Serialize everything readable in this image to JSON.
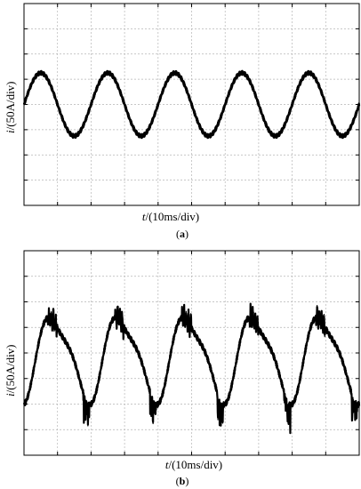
{
  "chart_data": [
    {
      "type": "line",
      "panel_label": "(a)",
      "caption_open": "(",
      "caption_letter": "a",
      "caption_close": ")",
      "ylabel_var": "i",
      "ylabel_rest": "/(50A/div)",
      "xlabel_var": "t",
      "xlabel_rest": "/(10ms/div)",
      "x_divisions": 10,
      "y_divisions": 8,
      "xlim": [
        0,
        100
      ],
      "ylim": [
        -4,
        4
      ],
      "series": [
        {
          "waveform": "sine",
          "period_ms": 20,
          "amplitude_div": 1.25,
          "offset_div": 0,
          "start_phase_deg": 0,
          "ripple_div": 0.08,
          "x": [
            0,
            5,
            10,
            15,
            20,
            25,
            30,
            35,
            40,
            45,
            50,
            55,
            60,
            65,
            70,
            75,
            80,
            85,
            90,
            95,
            100
          ],
          "y": [
            0,
            1.25,
            0,
            -1.25,
            0,
            1.25,
            0,
            -1.25,
            0,
            1.25,
            0,
            -1.25,
            0,
            1.25,
            0,
            -1.25,
            0,
            1.25,
            0,
            -1.25,
            0
          ]
        }
      ]
    },
    {
      "type": "line",
      "panel_label": "(b)",
      "caption_open": "(",
      "caption_letter": "b",
      "caption_close": ")",
      "ylabel_var": "i",
      "ylabel_rest": "/(50A/div)",
      "xlabel_var": "t",
      "xlabel_rest": "/(10ms/div)",
      "x_divisions": 10,
      "y_divisions": 8,
      "xlim": [
        0,
        100
      ],
      "ylim": [
        -4,
        4
      ],
      "series": [
        {
          "waveform": "distorted-sine-with-commutation-spikes",
          "period_ms": 20,
          "amplitude_div": 1.75,
          "offset_div": -0.15,
          "start_phase_deg": 290,
          "ripple_div": 0.1,
          "spike_zones": [
            "before-positive-peak",
            "negative-trough"
          ],
          "x": [
            0,
            4,
            9,
            14,
            19,
            24,
            29,
            34,
            39,
            44,
            49,
            54,
            59,
            64,
            69,
            74,
            79,
            84,
            89,
            94,
            100
          ],
          "y": [
            -1.65,
            1.5,
            0.5,
            -1.6,
            -1.3,
            1.5,
            0.4,
            -1.6,
            -1.3,
            1.5,
            0.4,
            -1.6,
            -1.3,
            1.5,
            0.4,
            -1.6,
            -1.3,
            1.5,
            0.4,
            -1.6,
            -1.2
          ]
        }
      ]
    }
  ]
}
